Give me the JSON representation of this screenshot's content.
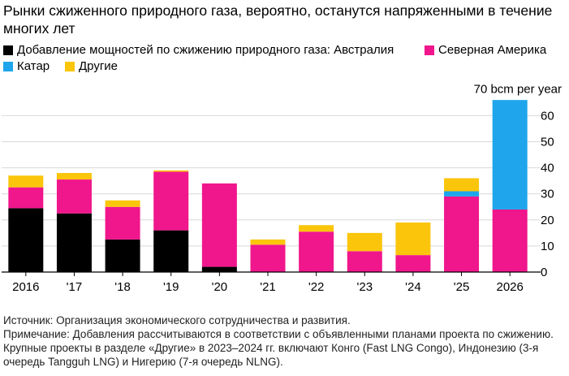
{
  "header": {
    "title": "Рынки сжиженного природного газа, вероятно, останутся напряженными в течение многих лет"
  },
  "legend": [
    {
      "name": "Добавление мощностей по сжижению природного газа: Австралия",
      "color": "#000000"
    },
    {
      "name": "Северная Америка",
      "color": "#f0168c"
    },
    {
      "name": "Катар",
      "color": "#1fa5eb"
    },
    {
      "name": "Другие",
      "color": "#fbc50c"
    }
  ],
  "footer": {
    "source": "Источник: Организация экономического сотрудничества и развития.",
    "note": "Примечание: Добавления рассчитываются в соответствии с объявленными планами проекта по сжижению. Крупные проекты в разделе «Другие» в 2023–2024 гг. включают Конго (Fast LNG Congo), Индонезию (3-я очередь Tangguh LNG) и Нигерию (7-я очередь NLNG)."
  },
  "chart_data": {
    "type": "bar",
    "stacked": true,
    "categories": [
      "2016",
      "'17",
      "'18",
      "'19",
      "'20",
      "'21",
      "'22",
      "'23",
      "'24",
      "'25",
      "2026"
    ],
    "series": [
      {
        "name": "Австралия",
        "color": "#000000",
        "values": [
          24.5,
          22.5,
          12.5,
          16,
          2,
          0,
          0,
          0,
          0,
          0,
          0
        ]
      },
      {
        "name": "Северная Америка",
        "color": "#f0168c",
        "values": [
          8,
          13,
          12.5,
          22.5,
          32,
          10.5,
          15.5,
          8,
          6.5,
          29,
          24
        ]
      },
      {
        "name": "Катар",
        "color": "#1fa5eb",
        "values": [
          0,
          0,
          0,
          0,
          0,
          0,
          0,
          0,
          0,
          2,
          42
        ]
      },
      {
        "name": "Другие",
        "color": "#fbc50c",
        "values": [
          4.5,
          2.5,
          2.5,
          0.5,
          0,
          2,
          2.5,
          7,
          12.5,
          5,
          0
        ]
      }
    ],
    "yticks": [
      0,
      10,
      20,
      30,
      40,
      50,
      60
    ],
    "ylim": [
      0,
      70
    ],
    "ylabel": "70 bcm per year",
    "xlabel": ""
  }
}
